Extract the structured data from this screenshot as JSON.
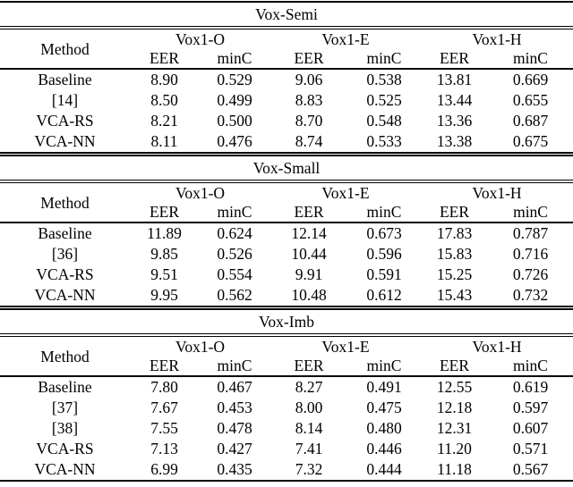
{
  "page": {
    "background_color": "#ffffff",
    "text_color": "#000000",
    "rule_color": "#000000"
  },
  "tables": [
    {
      "title": "Vox-Semi",
      "method_header": "Method",
      "group_headers": [
        "Vox1-O",
        "Vox1-E",
        "Vox1-H"
      ],
      "metric_headers": [
        "EER",
        "minC",
        "EER",
        "minC",
        "EER",
        "minC"
      ],
      "rows": [
        {
          "method": "Baseline",
          "values": [
            "8.90",
            "0.529",
            "9.06",
            "0.538",
            "13.81",
            "0.669"
          ]
        },
        {
          "method": "[14]",
          "values": [
            "8.50",
            "0.499",
            "8.83",
            "0.525",
            "13.44",
            "0.655"
          ]
        },
        {
          "method": "VCA-RS",
          "values": [
            "8.21",
            "0.500",
            "8.70",
            "0.548",
            "13.36",
            "0.687"
          ]
        },
        {
          "method": "VCA-NN",
          "values": [
            "8.11",
            "0.476",
            "8.74",
            "0.533",
            "13.38",
            "0.675"
          ]
        }
      ]
    },
    {
      "title": "Vox-Small",
      "method_header": "Method",
      "group_headers": [
        "Vox1-O",
        "Vox1-E",
        "Vox1-H"
      ],
      "metric_headers": [
        "EER",
        "minC",
        "EER",
        "minC",
        "EER",
        "minC"
      ],
      "rows": [
        {
          "method": "Baseline",
          "values": [
            "11.89",
            "0.624",
            "12.14",
            "0.673",
            "17.83",
            "0.787"
          ]
        },
        {
          "method": "[36]",
          "values": [
            "9.85",
            "0.526",
            "10.44",
            "0.596",
            "15.83",
            "0.716"
          ]
        },
        {
          "method": "VCA-RS",
          "values": [
            "9.51",
            "0.554",
            "9.91",
            "0.591",
            "15.25",
            "0.726"
          ]
        },
        {
          "method": "VCA-NN",
          "values": [
            "9.95",
            "0.562",
            "10.48",
            "0.612",
            "15.43",
            "0.732"
          ]
        }
      ]
    },
    {
      "title": "Vox-Imb",
      "method_header": "Method",
      "group_headers": [
        "Vox1-O",
        "Vox1-E",
        "Vox1-H"
      ],
      "metric_headers": [
        "EER",
        "minC",
        "EER",
        "minC",
        "EER",
        "minC"
      ],
      "rows": [
        {
          "method": "Baseline",
          "values": [
            "7.80",
            "0.467",
            "8.27",
            "0.491",
            "12.55",
            "0.619"
          ]
        },
        {
          "method": "[37]",
          "values": [
            "7.67",
            "0.453",
            "8.00",
            "0.475",
            "12.18",
            "0.597"
          ]
        },
        {
          "method": "[38]",
          "values": [
            "7.55",
            "0.478",
            "8.14",
            "0.480",
            "12.31",
            "0.607"
          ]
        },
        {
          "method": "VCA-RS",
          "values": [
            "7.13",
            "0.427",
            "7.41",
            "0.446",
            "11.20",
            "0.571"
          ]
        },
        {
          "method": "VCA-NN",
          "values": [
            "6.99",
            "0.435",
            "7.32",
            "0.444",
            "11.18",
            "0.567"
          ]
        }
      ]
    }
  ]
}
